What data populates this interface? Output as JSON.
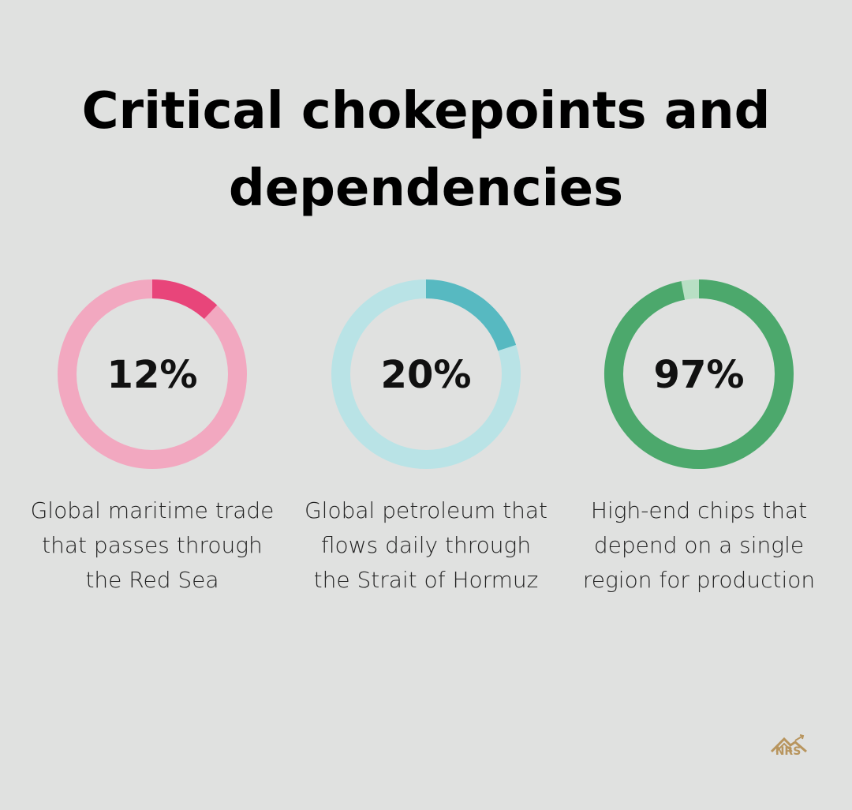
{
  "title": "Critical chokepoints and dependencies",
  "logo": "NRS",
  "chart_data": [
    {
      "type": "donut",
      "values": [
        12
      ],
      "value_labels": [
        "12%"
      ],
      "color": "#e8457a",
      "track_color": "#f2a8c0",
      "caption": "Global maritime trade that passes through the Red Sea"
    },
    {
      "type": "donut",
      "values": [
        20
      ],
      "value_labels": [
        "20%"
      ],
      "color": "#57b9c1",
      "track_color": "#b9e3e6",
      "caption": "Global petroleum that flows daily through the Strait of Hormuz"
    },
    {
      "type": "donut",
      "values": [
        97
      ],
      "value_labels": [
        "97%"
      ],
      "color": "#4ca86c",
      "track_color": "#b8dfc4",
      "caption": "High-end chips that depend on a single region for production"
    }
  ]
}
